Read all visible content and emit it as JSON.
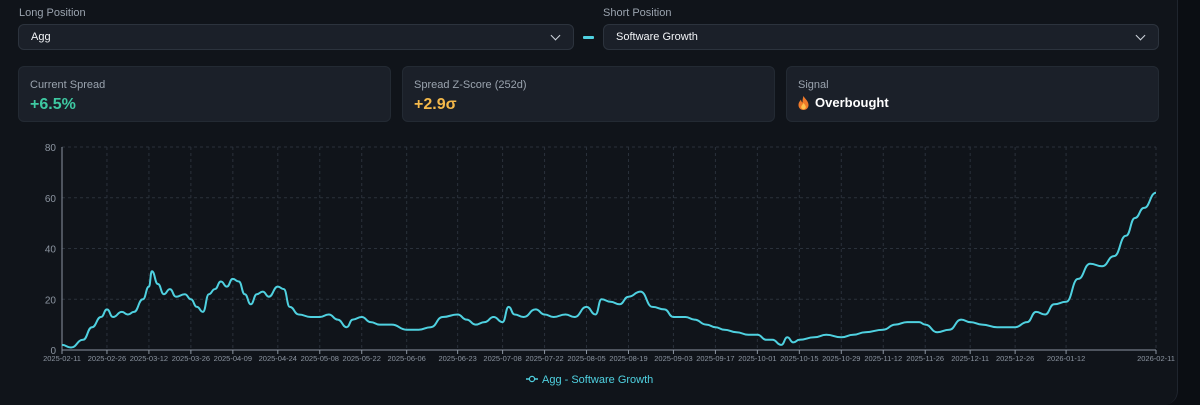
{
  "long": {
    "label": "Long Position",
    "selected": "Agg"
  },
  "short": {
    "label": "Short Position",
    "selected": "Software Growth"
  },
  "cards": {
    "spread": {
      "title": "Current Spread",
      "value": "+6.5%",
      "color": "#3ec9a2"
    },
    "zscore": {
      "title": "Spread Z-Score (252d)",
      "value": "+2.9σ",
      "color": "#f5b94a"
    },
    "signal": {
      "title": "Signal",
      "value": "Overbought",
      "icon": "fire-icon"
    }
  },
  "colors": {
    "line": "#4fd1e0",
    "grid": "#2a313b",
    "axis": "#8c95a1"
  },
  "chart_data": {
    "type": "line",
    "title": "",
    "xlabel": "",
    "ylabel": "",
    "ylim": [
      0,
      80
    ],
    "yticks": [
      0,
      20,
      40,
      60,
      80
    ],
    "grid": true,
    "legend": "bottom-center",
    "xticks": [
      "2025-02-11",
      "2025-02-26",
      "2025-03-12",
      "2025-03-26",
      "2025-04-09",
      "2025-04-24",
      "2025-05-08",
      "2025-05-22",
      "2025-06-06",
      "2025-06-23",
      "2025-07-08",
      "2025-07-22",
      "2025-08-05",
      "2025-08-19",
      "2025-09-03",
      "2025-09-17",
      "2025-10-01",
      "2025-10-15",
      "2025-10-29",
      "2025-11-12",
      "2025-11-26",
      "2025-12-11",
      "2025-12-26",
      "2026-01-12",
      "2026-02-11"
    ],
    "series": [
      {
        "name": "Agg - Software Growth",
        "points": [
          [
            "2025-02-11",
            2
          ],
          [
            "2025-02-14",
            1
          ],
          [
            "2025-02-18",
            4
          ],
          [
            "2025-02-21",
            9
          ],
          [
            "2025-02-24",
            13
          ],
          [
            "2025-02-26",
            16
          ],
          [
            "2025-02-28",
            13
          ],
          [
            "2025-03-03",
            15
          ],
          [
            "2025-03-05",
            14
          ],
          [
            "2025-03-07",
            15
          ],
          [
            "2025-03-10",
            20
          ],
          [
            "2025-03-12",
            25
          ],
          [
            "2025-03-13",
            31
          ],
          [
            "2025-03-15",
            26
          ],
          [
            "2025-03-17",
            22
          ],
          [
            "2025-03-19",
            24
          ],
          [
            "2025-03-21",
            21
          ],
          [
            "2025-03-24",
            22
          ],
          [
            "2025-03-26",
            20
          ],
          [
            "2025-03-28",
            17
          ],
          [
            "2025-03-30",
            15
          ],
          [
            "2025-04-01",
            22
          ],
          [
            "2025-04-03",
            24
          ],
          [
            "2025-04-05",
            27
          ],
          [
            "2025-04-07",
            25
          ],
          [
            "2025-04-09",
            28
          ],
          [
            "2025-04-11",
            27
          ],
          [
            "2025-04-13",
            22
          ],
          [
            "2025-04-15",
            18
          ],
          [
            "2025-04-17",
            22
          ],
          [
            "2025-04-19",
            23
          ],
          [
            "2025-04-21",
            21
          ],
          [
            "2025-04-24",
            25
          ],
          [
            "2025-04-26",
            24
          ],
          [
            "2025-04-28",
            17
          ],
          [
            "2025-05-01",
            14
          ],
          [
            "2025-05-05",
            13
          ],
          [
            "2025-05-08",
            13
          ],
          [
            "2025-05-11",
            14
          ],
          [
            "2025-05-14",
            12
          ],
          [
            "2025-05-17",
            9
          ],
          [
            "2025-05-19",
            12
          ],
          [
            "2025-05-22",
            13
          ],
          [
            "2025-05-25",
            11
          ],
          [
            "2025-05-28",
            10
          ],
          [
            "2025-06-01",
            10
          ],
          [
            "2025-06-06",
            8
          ],
          [
            "2025-06-10",
            8
          ],
          [
            "2025-06-14",
            9
          ],
          [
            "2025-06-18",
            13
          ],
          [
            "2025-06-23",
            14
          ],
          [
            "2025-06-26",
            12
          ],
          [
            "2025-06-29",
            10
          ],
          [
            "2025-07-02",
            11
          ],
          [
            "2025-07-05",
            13
          ],
          [
            "2025-07-08",
            11
          ],
          [
            "2025-07-10",
            17
          ],
          [
            "2025-07-12",
            14
          ],
          [
            "2025-07-15",
            13
          ],
          [
            "2025-07-19",
            16
          ],
          [
            "2025-07-22",
            14
          ],
          [
            "2025-07-25",
            13
          ],
          [
            "2025-07-29",
            14
          ],
          [
            "2025-08-01",
            13
          ],
          [
            "2025-08-05",
            17
          ],
          [
            "2025-08-08",
            14
          ],
          [
            "2025-08-10",
            20
          ],
          [
            "2025-08-13",
            19
          ],
          [
            "2025-08-16",
            18
          ],
          [
            "2025-08-19",
            21
          ],
          [
            "2025-08-23",
            23
          ],
          [
            "2025-08-27",
            17
          ],
          [
            "2025-08-31",
            16
          ],
          [
            "2025-09-03",
            13
          ],
          [
            "2025-09-07",
            13
          ],
          [
            "2025-09-10",
            12
          ],
          [
            "2025-09-14",
            10
          ],
          [
            "2025-09-17",
            9
          ],
          [
            "2025-09-20",
            8
          ],
          [
            "2025-09-24",
            7
          ],
          [
            "2025-09-28",
            6
          ],
          [
            "2025-10-01",
            6
          ],
          [
            "2025-10-04",
            4
          ],
          [
            "2025-10-06",
            4
          ],
          [
            "2025-10-09",
            2
          ],
          [
            "2025-10-11",
            5
          ],
          [
            "2025-10-13",
            3
          ],
          [
            "2025-10-15",
            4
          ],
          [
            "2025-10-20",
            5
          ],
          [
            "2025-10-24",
            6
          ],
          [
            "2025-10-29",
            5
          ],
          [
            "2025-11-02",
            6
          ],
          [
            "2025-11-06",
            7
          ],
          [
            "2025-11-12",
            8
          ],
          [
            "2025-11-16",
            10
          ],
          [
            "2025-11-20",
            11
          ],
          [
            "2025-11-24",
            11
          ],
          [
            "2025-11-26",
            10
          ],
          [
            "2025-11-30",
            7
          ],
          [
            "2025-12-04",
            8
          ],
          [
            "2025-12-08",
            12
          ],
          [
            "2025-12-11",
            11
          ],
          [
            "2025-12-15",
            10
          ],
          [
            "2025-12-20",
            9
          ],
          [
            "2025-12-26",
            9
          ],
          [
            "2025-12-30",
            11
          ],
          [
            "2026-01-02",
            15
          ],
          [
            "2026-01-05",
            14
          ],
          [
            "2026-01-08",
            18
          ],
          [
            "2026-01-12",
            19
          ],
          [
            "2026-01-16",
            28
          ],
          [
            "2026-01-20",
            34
          ],
          [
            "2026-01-24",
            33
          ],
          [
            "2026-01-28",
            37
          ],
          [
            "2026-02-01",
            45
          ],
          [
            "2026-02-04",
            52
          ],
          [
            "2026-02-07",
            56
          ],
          [
            "2026-02-11",
            62
          ]
        ]
      }
    ]
  }
}
